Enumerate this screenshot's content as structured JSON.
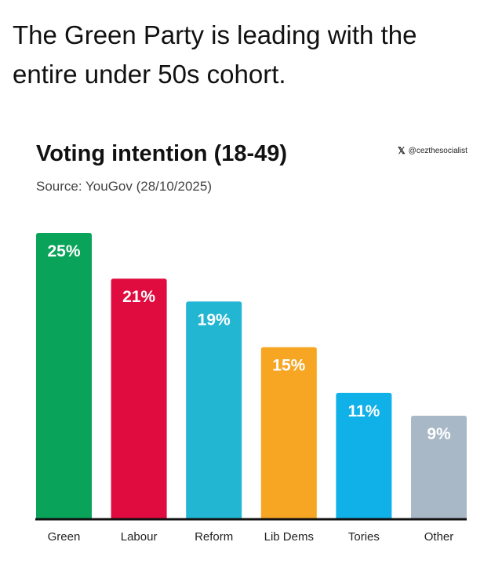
{
  "post": {
    "text": "The Green Party is leading with the entire under 50s cohort."
  },
  "attribution": {
    "icon": "x-logo-icon",
    "glyph": "𝕏",
    "handle": "@cezthesocialist"
  },
  "chart_data": {
    "type": "bar",
    "title": "Voting intention (18-49)",
    "subtitle": "Source: YouGov (28/10/2025)",
    "categories": [
      "Green",
      "Labour",
      "Reform",
      "Lib Dems",
      "Tories",
      "Other"
    ],
    "values": [
      25,
      21,
      19,
      15,
      11,
      9
    ],
    "value_labels": [
      "25%",
      "21%",
      "19%",
      "15%",
      "11%",
      "9%"
    ],
    "colors": [
      "#0aa35a",
      "#e00b3f",
      "#22b6d3",
      "#f6a623",
      "#10b0e8",
      "#a9b8c6"
    ],
    "ylim": [
      0,
      25
    ],
    "grid": false,
    "legend": "none",
    "xlabel": "",
    "ylabel": ""
  }
}
